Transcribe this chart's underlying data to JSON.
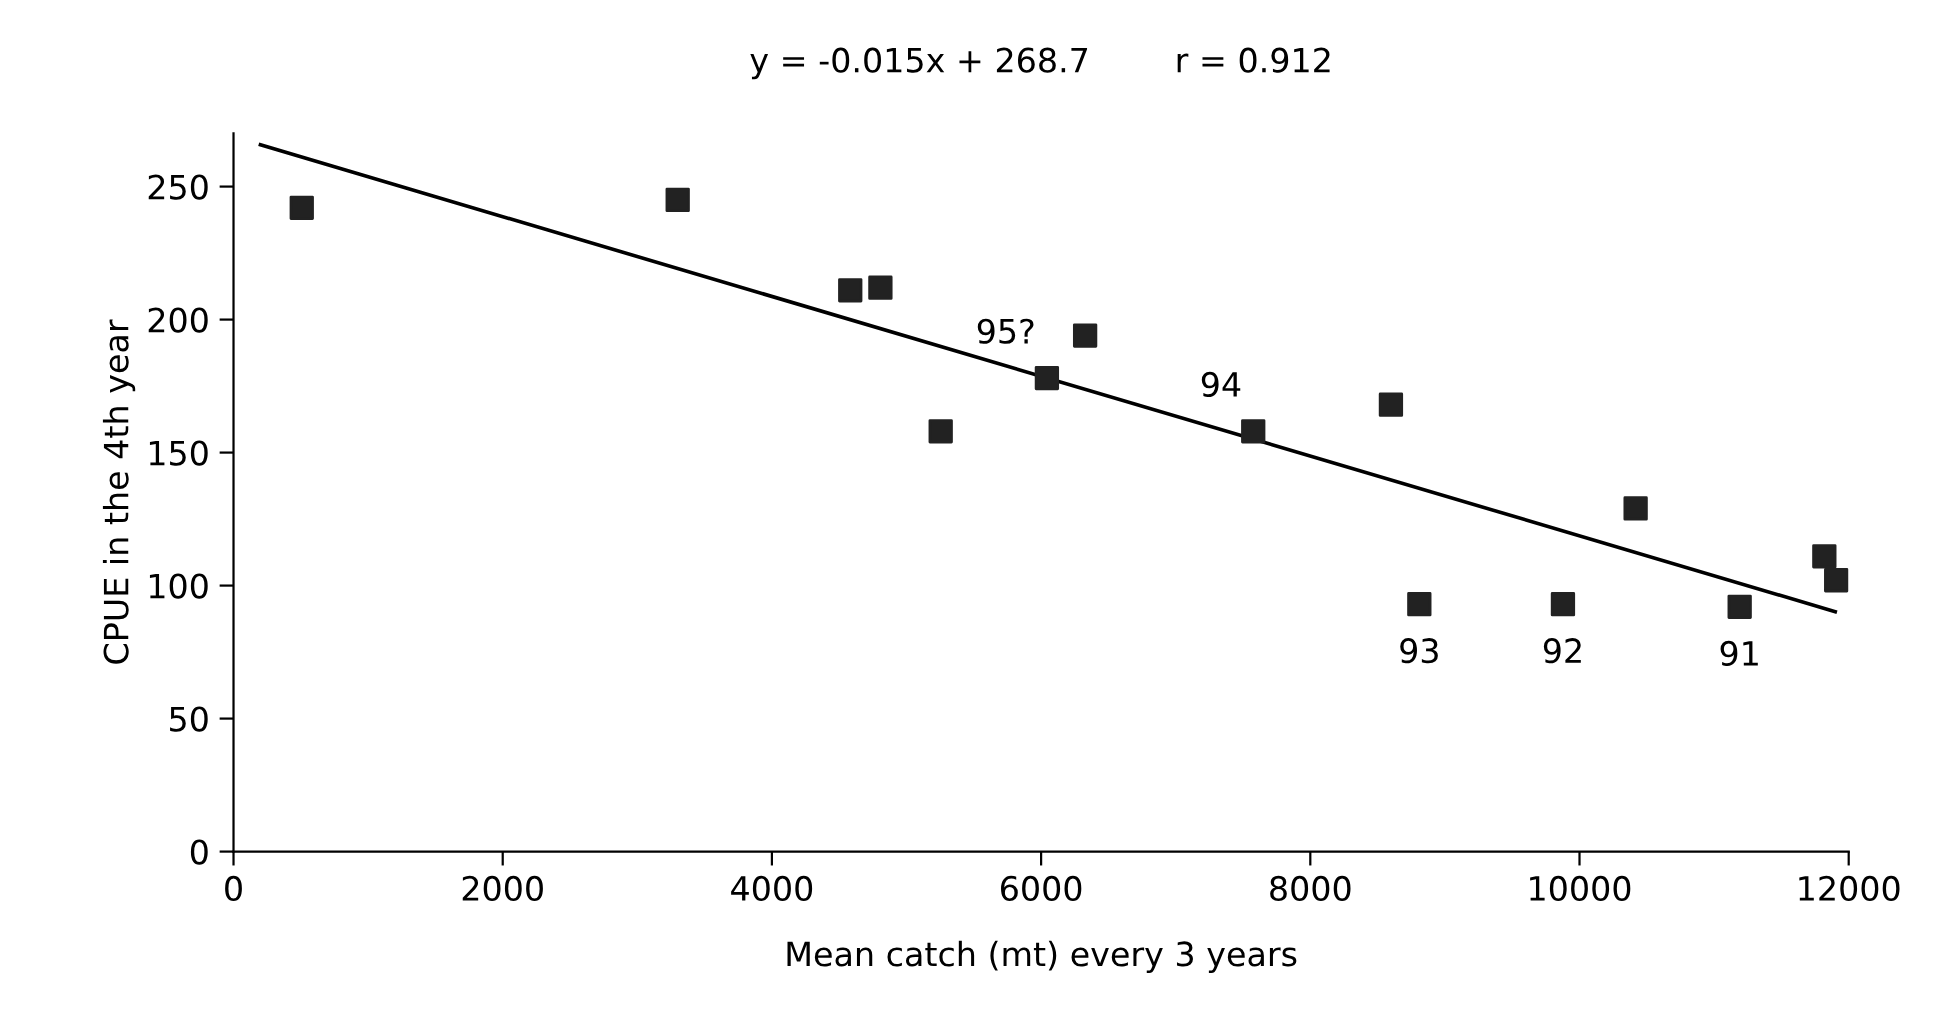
{
  "chart_data": {
    "type": "scatter",
    "title": "y = -0.015x + 268.7        r = 0.912",
    "xlabel": "Mean catch (mt) every 3 years",
    "ylabel": "CPUE in the 4th year",
    "series": [
      {
        "color": "#222222",
        "marker": "square",
        "x": [
          507,
          3300,
          4582,
          4806,
          5254,
          6043,
          6327,
          7576,
          8599,
          8810,
          9877,
          10417,
          11190,
          11819,
          11907
        ],
        "values": [
          242,
          245,
          211,
          212,
          158,
          178,
          194,
          158,
          168,
          93,
          93,
          129,
          92,
          111,
          102
        ]
      },
      {
        "type": "line",
        "color": "#000000",
        "line_style": "solid",
        "x": [
          200,
          11900
        ],
        "values": [
          265.7,
          90.2
        ]
      }
    ],
    "annotations": [
      {
        "text": "95?",
        "x": 6043,
        "y": 178
      },
      {
        "text": "94",
        "x": 7576,
        "y": 158
      },
      {
        "text": "93",
        "x": 8810,
        "y": 93
      },
      {
        "text": "92",
        "x": 9877,
        "y": 93
      },
      {
        "text": "91",
        "x": 11190,
        "y": 92
      }
    ],
    "xlim": [
      0,
      12000
    ],
    "ylim": [
      0,
      270
    ],
    "xticks": [
      0,
      2000,
      4000,
      6000,
      8000,
      10000,
      12000
    ],
    "yticks": [
      0,
      50,
      100,
      150,
      200,
      250
    ],
    "grid": false,
    "legend": false
  }
}
